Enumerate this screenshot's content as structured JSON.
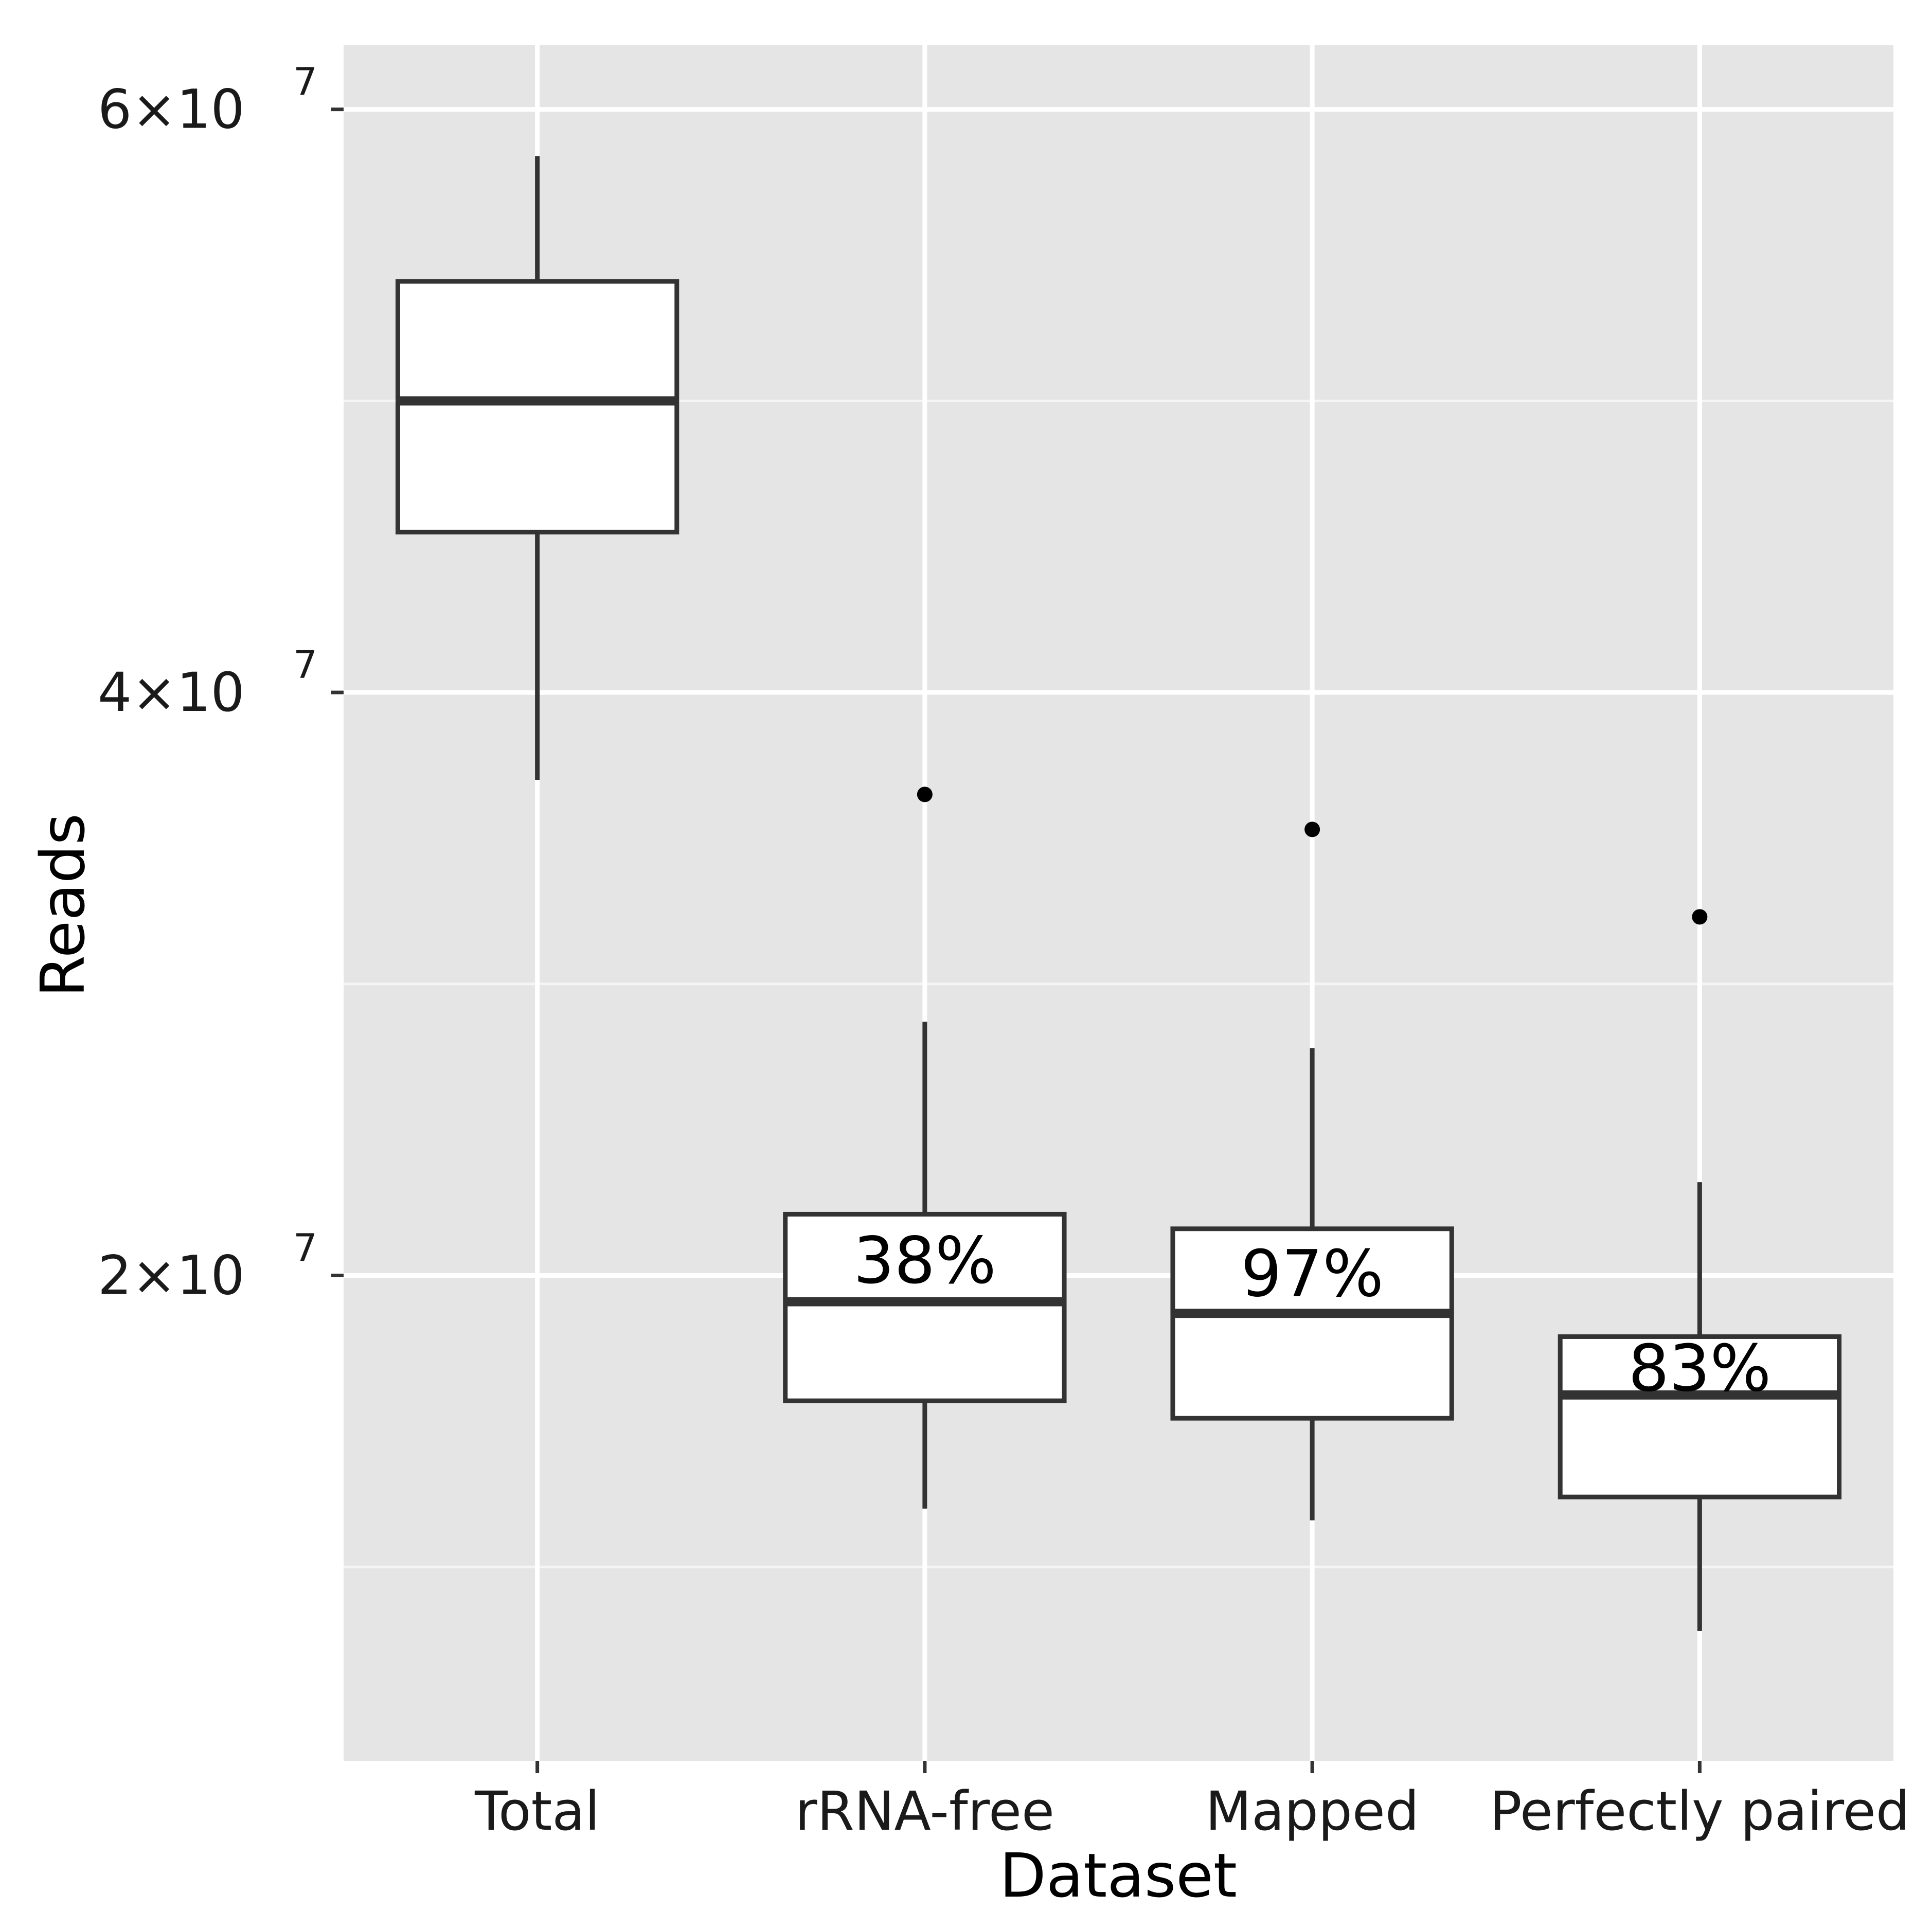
{
  "chart_data": {
    "type": "box",
    "xlabel": "Dataset",
    "ylabel": "Reads",
    "categories": [
      "Total",
      "rRNA-free",
      "Mapped",
      "Perfectly paired"
    ],
    "yaxis": {
      "ylim": [
        3350000,
        62200000
      ],
      "ticks": [
        {
          "value": 20000000,
          "mantissa": "2",
          "exp": "7"
        },
        {
          "value": 40000000,
          "mantissa": "4",
          "exp": "7"
        },
        {
          "value": 60000000,
          "mantissa": "6",
          "exp": "7"
        }
      ],
      "minor_gridlines": [
        10000000,
        30000000,
        50000000
      ]
    },
    "boxes": [
      {
        "category": "Total",
        "whisker_low": 37000000,
        "q1": 45500000,
        "median": 50000000,
        "q3": 54100000,
        "whisker_high": 58400000,
        "outliers": [],
        "annotation": ""
      },
      {
        "category": "rRNA-free",
        "whisker_low": 12000000,
        "q1": 15700000,
        "median": 19100000,
        "q3": 22100000,
        "whisker_high": 28700000,
        "outliers": [
          36500000
        ],
        "annotation": "38%"
      },
      {
        "category": "Mapped",
        "whisker_low": 11600000,
        "q1": 15100000,
        "median": 18700000,
        "q3": 21600000,
        "whisker_high": 27800000,
        "outliers": [
          35300000
        ],
        "annotation": "97%"
      },
      {
        "category": "Perfectly paired",
        "whisker_low": 7800000,
        "q1": 12400000,
        "median": 15900000,
        "q3": 17900000,
        "whisker_high": 23200000,
        "outliers": [
          32300000
        ],
        "annotation": "83%"
      }
    ],
    "grid": true,
    "legend": "none",
    "colors": {
      "panel": "#e5e5e5",
      "gridline": "#ffffff",
      "box_fill": "#ffffff",
      "box_stroke": "#333333",
      "text": "#000000",
      "axis_text": "#1a1a1a"
    }
  }
}
